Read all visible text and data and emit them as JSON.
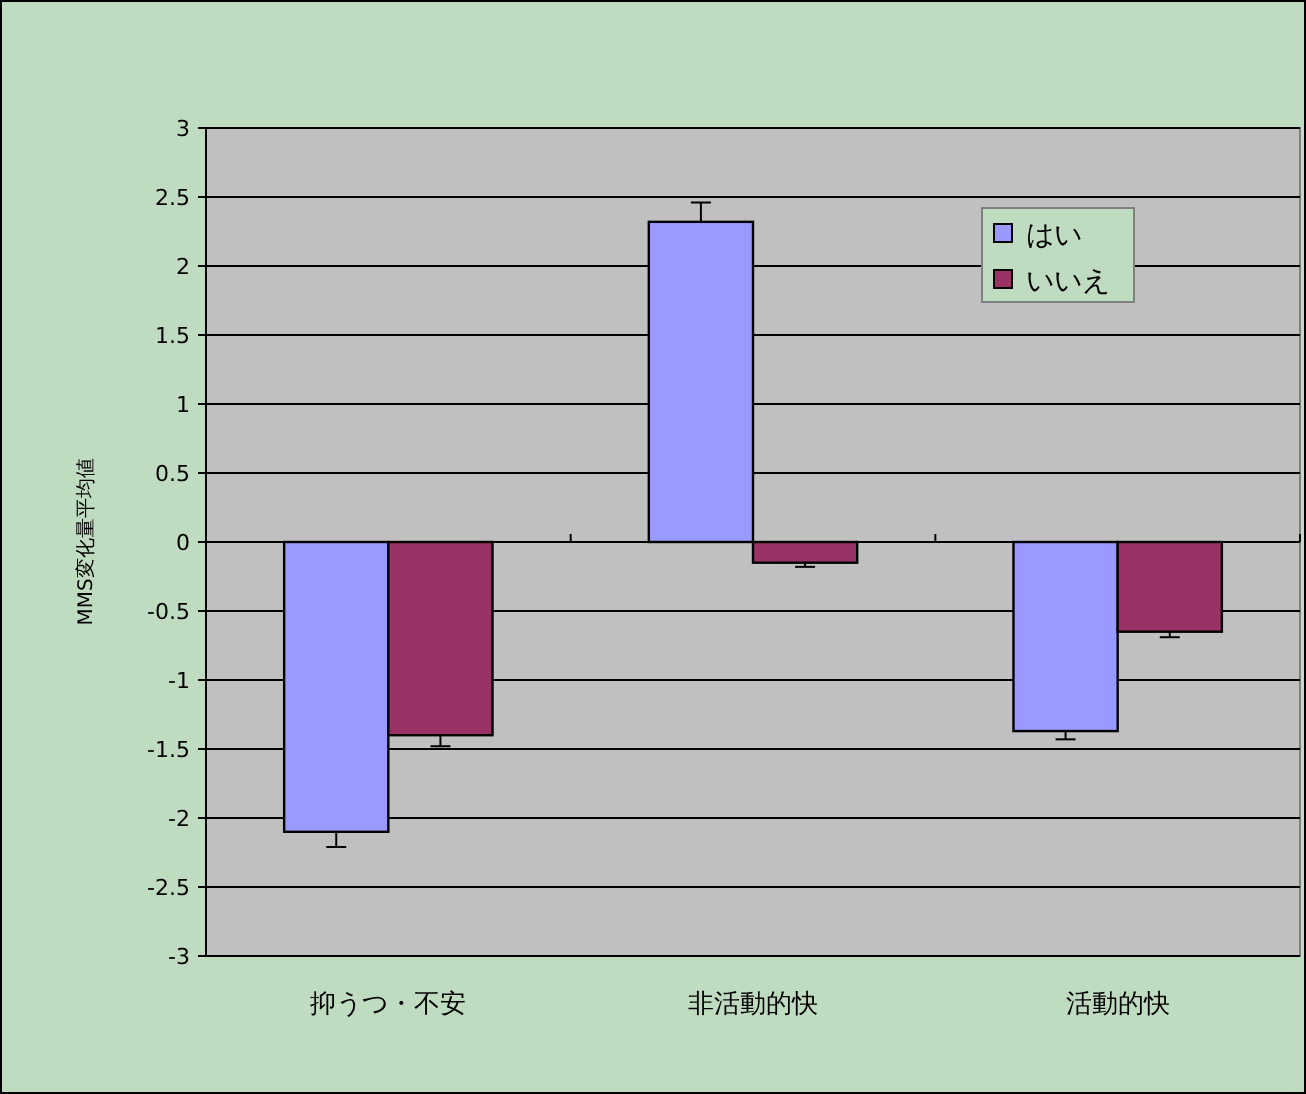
{
  "chart_data": {
    "type": "bar",
    "ylabel": "MMS変化量平均値",
    "categories": [
      "抑うつ・不安",
      "非活動的快",
      "活動的快"
    ],
    "series": [
      {
        "name": "はい",
        "color": "#9999ff",
        "values": [
          -2.1,
          2.32,
          -1.37
        ],
        "errors": [
          [
            -2.21,
            -2.1
          ],
          [
            2.32,
            2.46
          ],
          [
            -1.43,
            -1.37
          ]
        ]
      },
      {
        "name": "いいえ",
        "color": "#993366",
        "values": [
          -1.4,
          -0.15,
          -0.65
        ],
        "errors": [
          [
            -1.48,
            -1.4
          ],
          [
            -0.18,
            -0.15
          ],
          [
            -0.69,
            -0.65
          ]
        ]
      }
    ],
    "ylim": [
      -3,
      3
    ],
    "yticks": [
      -3,
      -2.5,
      -2,
      -1.5,
      -1,
      -0.5,
      0,
      0.5,
      1,
      1.5,
      2,
      2.5,
      3
    ],
    "grid": "y",
    "legend": "top right"
  }
}
